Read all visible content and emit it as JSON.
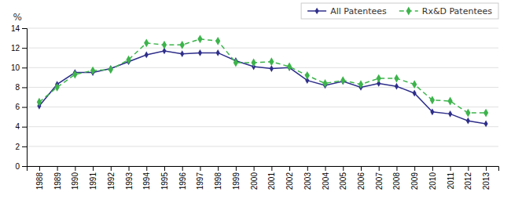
{
  "chart_data": {
    "type": "line",
    "ylabel": "%",
    "x": [
      1988,
      1989,
      1990,
      1991,
      1992,
      1993,
      1994,
      1995,
      1996,
      1997,
      1998,
      1999,
      2000,
      2001,
      2002,
      2003,
      2004,
      2005,
      2006,
      2007,
      2008,
      2009,
      2010,
      2011,
      2012,
      2013
    ],
    "xlim": [
      1987.3,
      2013.7
    ],
    "xticks": [
      1988,
      1989,
      1990,
      1991,
      1992,
      1993,
      1994,
      1995,
      1996,
      1997,
      1998,
      1999,
      2000,
      2001,
      2002,
      2003,
      2004,
      2005,
      2006,
      2007,
      2008,
      2009,
      2010,
      2011,
      2012,
      2013
    ],
    "ylim": [
      0,
      14
    ],
    "yticks": [
      0,
      2,
      4,
      6,
      8,
      10,
      12,
      14
    ],
    "grid": true,
    "legend": "top-right",
    "series": [
      {
        "name": "All Patentees",
        "color": "#2e2e8b",
        "marker": "diamond",
        "line_style": "solid",
        "values": [
          6.1,
          8.3,
          9.5,
          9.5,
          9.9,
          10.6,
          11.3,
          11.7,
          11.4,
          11.5,
          11.5,
          10.7,
          10.1,
          9.9,
          10.0,
          8.7,
          8.2,
          8.6,
          8.0,
          8.4,
          8.1,
          7.4,
          5.5,
          5.3,
          4.6,
          4.3
        ]
      },
      {
        "name": "Rx&D Patentees",
        "color": "#3cb44b",
        "marker": "diamond",
        "line_style": "dashed",
        "values": [
          6.5,
          8.0,
          9.3,
          9.7,
          9.8,
          10.8,
          12.5,
          12.3,
          12.3,
          12.9,
          12.7,
          10.5,
          10.5,
          10.6,
          10.1,
          9.2,
          8.4,
          8.7,
          8.3,
          8.9,
          8.9,
          8.3,
          6.7,
          6.6,
          5.4,
          5.4
        ]
      }
    ]
  }
}
